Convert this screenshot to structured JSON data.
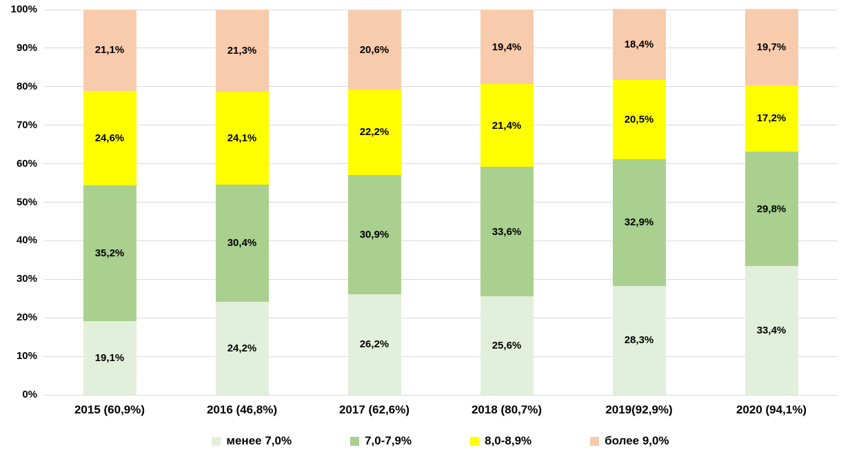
{
  "chart_data": {
    "type": "bar",
    "variant": "stacked-100-percent-column",
    "title": "",
    "xlabel": "",
    "ylabel": "",
    "background": "#ffffff",
    "text_color": "#000000",
    "grid": true,
    "grid_color": "#d9d9d9",
    "legend_position": "bottom",
    "categories": [
      "2015 (60,9%)",
      "2016 (46,8%)",
      "2017 (62,6%)",
      "2018 (80,7%)",
      "2019(92,9%)",
      "2020 (94,1%)"
    ],
    "series": [
      {
        "name": "менее 7,0%",
        "color": "#e2efda",
        "values": [
          19.1,
          24.2,
          26.2,
          25.6,
          28.3,
          33.4
        ],
        "labels": [
          "19,1%",
          "24,2%",
          "26,2%",
          "25,6%",
          "28,3%",
          "33,4%"
        ]
      },
      {
        "name": "7,0-7,9%",
        "color": "#a9d08e",
        "values": [
          35.2,
          30.4,
          30.9,
          33.6,
          32.9,
          29.8
        ],
        "labels": [
          "35,2%",
          "30,4%",
          "30,9%",
          "33,6%",
          "32,9%",
          "29,8%"
        ]
      },
      {
        "name": "8,0-8,9%",
        "color": "#ffff00",
        "values": [
          24.6,
          24.1,
          22.2,
          21.4,
          20.5,
          17.2
        ],
        "labels": [
          "24,6%",
          "24,1%",
          "22,2%",
          "21,4%",
          "20,5%",
          "17,2%"
        ]
      },
      {
        "name": "более 9,0%",
        "color": "#f8cbad",
        "values": [
          21.1,
          21.3,
          20.6,
          19.4,
          18.4,
          19.7
        ],
        "labels": [
          "21,1%",
          "21,3%",
          "20,6%",
          "19,4%",
          "18,4%",
          "19,7%"
        ]
      }
    ],
    "y_axis": {
      "min": 0,
      "max": 100,
      "step": 10,
      "tick_labels": [
        "0%",
        "10%",
        "20%",
        "30%",
        "40%",
        "50%",
        "60%",
        "70%",
        "80%",
        "90%",
        "100%"
      ]
    }
  }
}
